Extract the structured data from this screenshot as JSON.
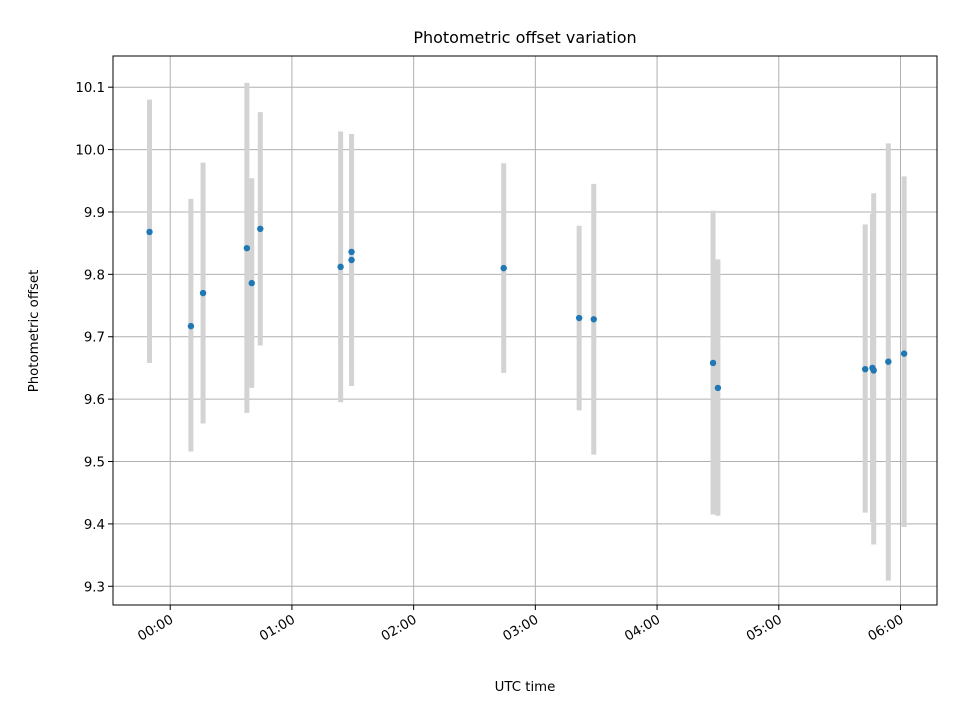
{
  "chart_data": {
    "type": "scatter",
    "title": "Photometric offset variation",
    "xlabel": "UTC time",
    "ylabel": "Photometric offset",
    "x_unit": "hours (UTC)",
    "xlim": [
      -0.47,
      6.3
    ],
    "ylim": [
      9.27,
      10.15
    ],
    "x_ticks": [
      {
        "value": 0,
        "label": "00:00"
      },
      {
        "value": 1,
        "label": "01:00"
      },
      {
        "value": 2,
        "label": "02:00"
      },
      {
        "value": 3,
        "label": "03:00"
      },
      {
        "value": 4,
        "label": "04:00"
      },
      {
        "value": 5,
        "label": "05:00"
      },
      {
        "value": 6,
        "label": "06:00"
      }
    ],
    "y_ticks": [
      {
        "value": 9.3,
        "label": "9.3"
      },
      {
        "value": 9.4,
        "label": "9.4"
      },
      {
        "value": 9.5,
        "label": "9.5"
      },
      {
        "value": 9.6,
        "label": "9.6"
      },
      {
        "value": 9.7,
        "label": "9.7"
      },
      {
        "value": 9.8,
        "label": "9.8"
      },
      {
        "value": 9.9,
        "label": "9.9"
      },
      {
        "value": 10.0,
        "label": "10.0"
      },
      {
        "value": 10.1,
        "label": "10.1"
      }
    ],
    "grid": true,
    "colors": {
      "point": "#1f77b4",
      "errorbar": "#d3d3d3",
      "grid": "#b0b0b0"
    },
    "points": [
      {
        "x": -0.17,
        "y": 9.868,
        "err_low": 9.658,
        "err_high": 10.08
      },
      {
        "x": 0.17,
        "y": 9.717,
        "err_low": 9.516,
        "err_high": 9.921
      },
      {
        "x": 0.27,
        "y": 9.77,
        "err_low": 9.561,
        "err_high": 9.979
      },
      {
        "x": 0.63,
        "y": 9.842,
        "err_low": 9.578,
        "err_high": 10.107
      },
      {
        "x": 0.67,
        "y": 9.786,
        "err_low": 9.618,
        "err_high": 9.954
      },
      {
        "x": 0.74,
        "y": 9.873,
        "err_low": 9.686,
        "err_high": 10.06
      },
      {
        "x": 1.4,
        "y": 9.812,
        "err_low": 9.595,
        "err_high": 10.029
      },
      {
        "x": 1.49,
        "y": 9.836,
        "err_low": 9.646,
        "err_high": 10.025
      },
      {
        "x": 1.49,
        "y": 9.823,
        "err_low": 9.621,
        "err_high": 10.025
      },
      {
        "x": 2.74,
        "y": 9.81,
        "err_low": 9.642,
        "err_high": 9.978
      },
      {
        "x": 3.36,
        "y": 9.73,
        "err_low": 9.582,
        "err_high": 9.878
      },
      {
        "x": 3.48,
        "y": 9.728,
        "err_low": 9.511,
        "err_high": 9.945
      },
      {
        "x": 4.46,
        "y": 9.658,
        "err_low": 9.415,
        "err_high": 9.902
      },
      {
        "x": 4.5,
        "y": 9.618,
        "err_low": 9.413,
        "err_high": 9.824
      },
      {
        "x": 5.71,
        "y": 9.648,
        "err_low": 9.418,
        "err_high": 9.88
      },
      {
        "x": 5.77,
        "y": 9.65,
        "err_low": 9.403,
        "err_high": 9.897
      },
      {
        "x": 5.78,
        "y": 9.646,
        "err_low": 9.367,
        "err_high": 9.93
      },
      {
        "x": 5.9,
        "y": 9.66,
        "err_low": 9.309,
        "err_high": 10.01
      },
      {
        "x": 6.03,
        "y": 9.673,
        "err_low": 9.395,
        "err_high": 9.957
      }
    ]
  }
}
